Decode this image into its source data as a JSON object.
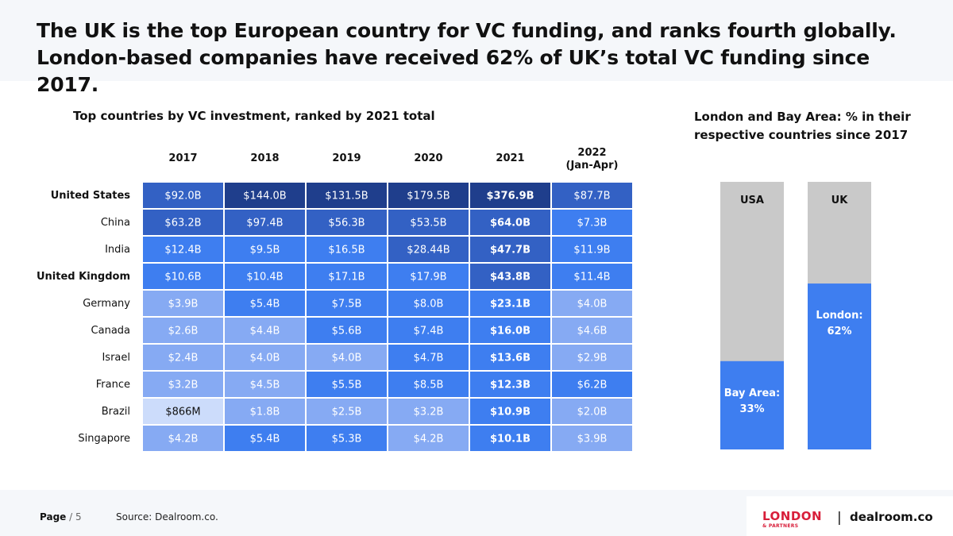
{
  "headline": {
    "line1": "The UK is the top European country for VC funding, and ranks fourth globally.",
    "line2": "London-based companies have received 62% of UK’s total VC funding since 2017."
  },
  "chart_data": [
    {
      "type": "heatmap",
      "title": "Top countries by VC investment, ranked by 2021 total",
      "columns": [
        {
          "line1": "2017",
          "line2": ""
        },
        {
          "line1": "2018",
          "line2": ""
        },
        {
          "line1": "2019",
          "line2": ""
        },
        {
          "line1": "2020",
          "line2": ""
        },
        {
          "line1": "2021",
          "line2": ""
        },
        {
          "line1": "2022",
          "line2": "(Jan-Apr)"
        }
      ],
      "rows": [
        {
          "country": "United States",
          "bold": true,
          "values": [
            "$92.0B",
            "$144.0B",
            "$131.5B",
            "$179.5B",
            "$376.9B",
            "$87.7B"
          ],
          "levels": [
            2,
            1,
            1,
            1,
            1,
            2
          ]
        },
        {
          "country": "China",
          "bold": false,
          "values": [
            "$63.2B",
            "$97.4B",
            "$56.3B",
            "$53.5B",
            "$64.0B",
            "$7.3B"
          ],
          "levels": [
            2,
            2,
            2,
            2,
            2,
            3
          ]
        },
        {
          "country": "India",
          "bold": false,
          "values": [
            "$12.4B",
            "$9.5B",
            "$16.5B",
            "$28.44B",
            "$47.7B",
            "$11.9B"
          ],
          "levels": [
            3,
            3,
            3,
            2,
            2,
            3
          ]
        },
        {
          "country": "United Kingdom",
          "bold": true,
          "values": [
            "$10.6B",
            "$10.4B",
            "$17.1B",
            "$17.9B",
            "$43.8B",
            "$11.4B"
          ],
          "levels": [
            3,
            3,
            3,
            3,
            2,
            3
          ]
        },
        {
          "country": "Germany",
          "bold": false,
          "values": [
            "$3.9B",
            "$5.4B",
            "$7.5B",
            "$8.0B",
            "$23.1B",
            "$4.0B"
          ],
          "levels": [
            4,
            3,
            3,
            3,
            3,
            4
          ]
        },
        {
          "country": "Canada",
          "bold": false,
          "values": [
            "$2.6B",
            "$4.4B",
            "$5.6B",
            "$7.4B",
            "$16.0B",
            "$4.6B"
          ],
          "levels": [
            4,
            4,
            3,
            3,
            3,
            4
          ]
        },
        {
          "country": "Israel",
          "bold": false,
          "values": [
            "$2.4B",
            "$4.0B",
            "$4.0B",
            "$4.7B",
            "$13.6B",
            "$2.9B"
          ],
          "levels": [
            4,
            4,
            4,
            3,
            3,
            4
          ]
        },
        {
          "country": "France",
          "bold": false,
          "values": [
            "$3.2B",
            "$4.5B",
            "$5.5B",
            "$8.5B",
            "$12.3B",
            "$6.2B"
          ],
          "levels": [
            4,
            4,
            3,
            3,
            3,
            3
          ]
        },
        {
          "country": "Brazil",
          "bold": false,
          "values": [
            "$866M",
            "$1.8B",
            "$2.5B",
            "$3.2B",
            "$10.9B",
            "$2.0B"
          ],
          "levels": [
            5,
            4,
            4,
            4,
            3,
            4
          ]
        },
        {
          "country": "Singapore",
          "bold": false,
          "values": [
            "$4.2B",
            "$5.4B",
            "$5.3B",
            "$4.2B",
            "$10.1B",
            "$3.9B"
          ],
          "levels": [
            4,
            3,
            3,
            4,
            3,
            4
          ]
        }
      ],
      "bold_column": "2021",
      "level_colors": {
        "1": "#1f3e8c",
        "2": "#3361c4",
        "3": "#3e7ef0",
        "4": "#86aaf3",
        "5": "#ccdcfb"
      }
    },
    {
      "type": "bar",
      "title": "London and Bay Area: % in their respective countries since 2017",
      "categories": [
        "USA",
        "UK"
      ],
      "series": [
        {
          "name": "",
          "values": [
            33,
            62
          ]
        }
      ],
      "bar_labels": [
        {
          "line1": "Bay Area:",
          "line2": "33%"
        },
        {
          "line1": "London:",
          "line2": "62%"
        }
      ],
      "ylim": [
        0,
        100
      ],
      "fill_color": "#3e7ef0",
      "background_color": "#c9c9c9"
    }
  ],
  "footer": {
    "page_label": "Page",
    "page_number": "5",
    "source": "Source: Dealroom.co."
  },
  "logos": {
    "london_text": "LONDON",
    "partners_text": "& PARTNERS",
    "divider": "|",
    "dealroom_text": "dealroom.co"
  }
}
